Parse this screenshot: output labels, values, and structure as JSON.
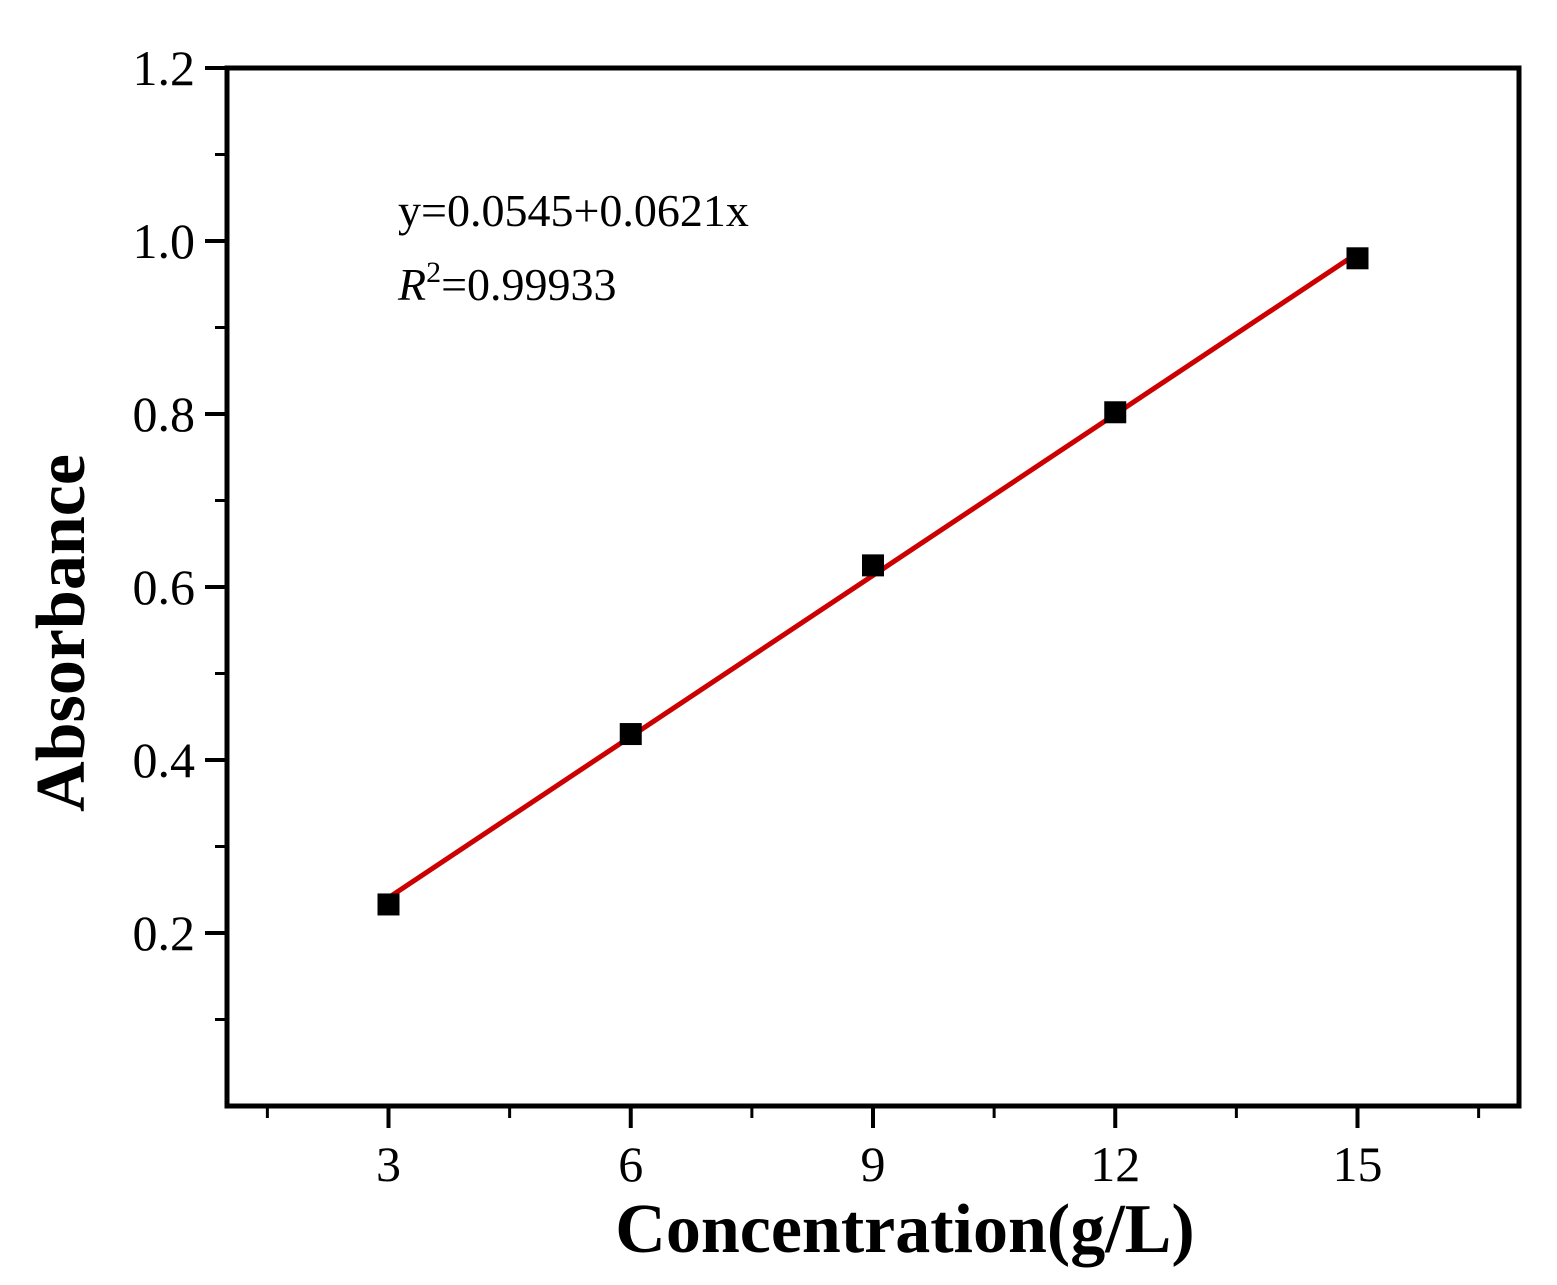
{
  "chart_data": {
    "type": "scatter",
    "title": "",
    "xlabel": "Concentration(g/L)",
    "ylabel": "Absorbance",
    "xlim": [
      1,
      17
    ],
    "ylim": [
      0,
      1.2
    ],
    "x_ticks": [
      3,
      6,
      9,
      12,
      15
    ],
    "x_tick_labels": [
      "3",
      "6",
      "9",
      "12",
      "15"
    ],
    "y_ticks": [
      0.2,
      0.4,
      0.6,
      0.8,
      1.0,
      1.2
    ],
    "y_tick_labels": [
      "0.2",
      "0.4",
      "0.6",
      "0.8",
      "1.0",
      "1.2"
    ],
    "grid": false,
    "legend": "none",
    "series": [
      {
        "marker": "square",
        "color": "#000000",
        "x": [
          3,
          6,
          9,
          12,
          15
        ],
        "y": [
          0.233,
          0.43,
          0.625,
          0.802,
          0.98
        ]
      }
    ],
    "fit_line": {
      "color": "#cc0000",
      "intercept": 0.0545,
      "slope": 0.0621,
      "x_range": [
        3,
        15
      ]
    },
    "annotations": {
      "equation": "y=0.0545+0.0621x",
      "r2_symbol": "R",
      "r2_exponent": "2",
      "r2_value": "=0.99933"
    }
  }
}
